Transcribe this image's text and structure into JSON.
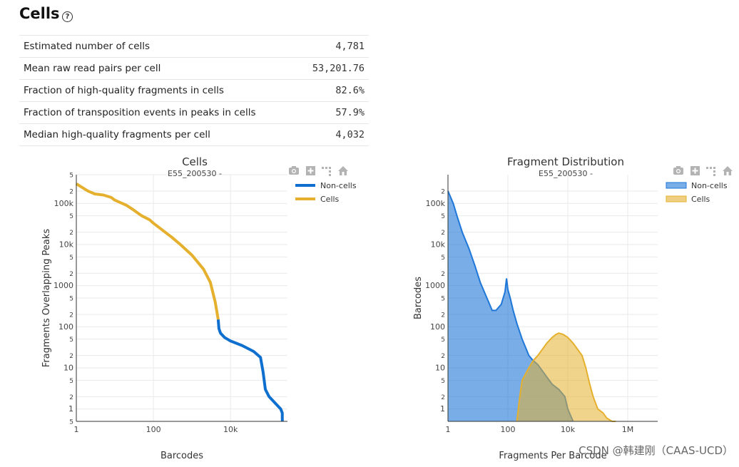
{
  "header": {
    "title": "Cells",
    "help_icon": "?"
  },
  "metrics": [
    {
      "label": "Estimated number of cells",
      "value": "4,781"
    },
    {
      "label": "Mean raw read pairs per cell",
      "value": "53,201.76"
    },
    {
      "label": "Fraction of high-quality fragments in cells",
      "value": "82.6%"
    },
    {
      "label": "Fraction of transposition events in peaks in cells",
      "value": "57.9%"
    },
    {
      "label": "Median high-quality fragments per cell",
      "value": "4,032"
    }
  ],
  "toolbar_icons": [
    "camera-icon",
    "zoom-plus-icon",
    "autoscale-icon",
    "home-icon"
  ],
  "chart_data": [
    {
      "type": "line",
      "title": "Cells",
      "subtitle": "E55_200530 -",
      "xlabel": "Barcodes",
      "ylabel": "Fragments Overlapping Peaks",
      "xscale": "log",
      "yscale": "log",
      "xlim": [
        1,
        300000
      ],
      "ylim": [
        0.5,
        500000
      ],
      "x_ticks": [
        "1",
        "100",
        "10k"
      ],
      "y_ticks": [
        "5",
        "2",
        "100k",
        "5",
        "2",
        "10k",
        "5",
        "2",
        "1000",
        "5",
        "2",
        "100",
        "5",
        "2",
        "10",
        "5",
        "2",
        "1",
        "5"
      ],
      "legend": [
        "Non-cells",
        "Cells"
      ],
      "colors": {
        "Non-cells": "#0f6fce",
        "Cells": "#e5b02e"
      },
      "series": [
        {
          "name": "Cells",
          "x": [
            1,
            2,
            3,
            5,
            8,
            10,
            20,
            30,
            50,
            80,
            100,
            200,
            300,
            500,
            1000,
            2000,
            3000,
            4000,
            4781
          ],
          "y": [
            300000,
            200000,
            170000,
            160000,
            140000,
            120000,
            90000,
            70000,
            50000,
            40000,
            33000,
            20000,
            15000,
            10000,
            5500,
            2500,
            1200,
            400,
            150
          ]
        },
        {
          "name": "Non-cells",
          "x": [
            4781,
            5000,
            5500,
            7000,
            10000,
            20000,
            40000,
            60000,
            70000,
            80000,
            100000,
            200000,
            220000,
            220500
          ],
          "y": [
            150,
            90,
            70,
            55,
            45,
            35,
            25,
            18,
            8,
            3,
            2,
            1,
            0.8,
            0.5
          ]
        }
      ]
    },
    {
      "type": "area",
      "title": "Fragment Distribution",
      "subtitle": "E55_200530 -",
      "xlabel": "Fragments Per Barcode",
      "ylabel": "Barcodes",
      "xscale": "log",
      "yscale": "log",
      "xlim": [
        1,
        10000000
      ],
      "ylim": [
        0.5,
        500000
      ],
      "x_ticks": [
        "1",
        "100",
        "10k",
        "1M"
      ],
      "y_ticks": [
        "2",
        "100k",
        "5",
        "2",
        "10k",
        "5",
        "2",
        "1000",
        "5",
        "2",
        "100",
        "5",
        "2",
        "10",
        "5",
        "2",
        "1"
      ],
      "legend": [
        "Non-cells",
        "Cells"
      ],
      "colors": {
        "Non-cells": "#1f77d8",
        "Cells": "#e5b02e"
      },
      "series": [
        {
          "name": "Non-cells",
          "x": [
            1,
            1.5,
            2,
            3,
            5,
            8,
            12,
            20,
            30,
            40,
            60,
            80,
            90,
            100,
            120,
            150,
            200,
            300,
            400,
            500,
            700,
            1000,
            1500,
            2000,
            3000,
            5000,
            8000,
            10000,
            15000
          ],
          "y": [
            200000,
            100000,
            50000,
            20000,
            8000,
            3000,
            1200,
            500,
            250,
            250,
            350,
            700,
            1500,
            800,
            500,
            250,
            120,
            50,
            30,
            20,
            15,
            12,
            8,
            6,
            4,
            3,
            2,
            1,
            0.5
          ]
        },
        {
          "name": "Cells",
          "x": [
            200,
            250,
            300,
            500,
            700,
            1000,
            1500,
            2000,
            3000,
            4000,
            5000,
            7000,
            10000,
            15000,
            20000,
            30000,
            40000,
            50000,
            60000,
            70000,
            100000,
            150000,
            200000,
            300000,
            400000
          ],
          "y": [
            0.5,
            2,
            5,
            10,
            15,
            20,
            30,
            40,
            55,
            65,
            70,
            65,
            55,
            40,
            30,
            20,
            10,
            5,
            3,
            2,
            1,
            0.8,
            0.6,
            0.5,
            0.5
          ]
        }
      ]
    }
  ],
  "watermark": "CSDN @韩建刚（CAAS-UCD）"
}
